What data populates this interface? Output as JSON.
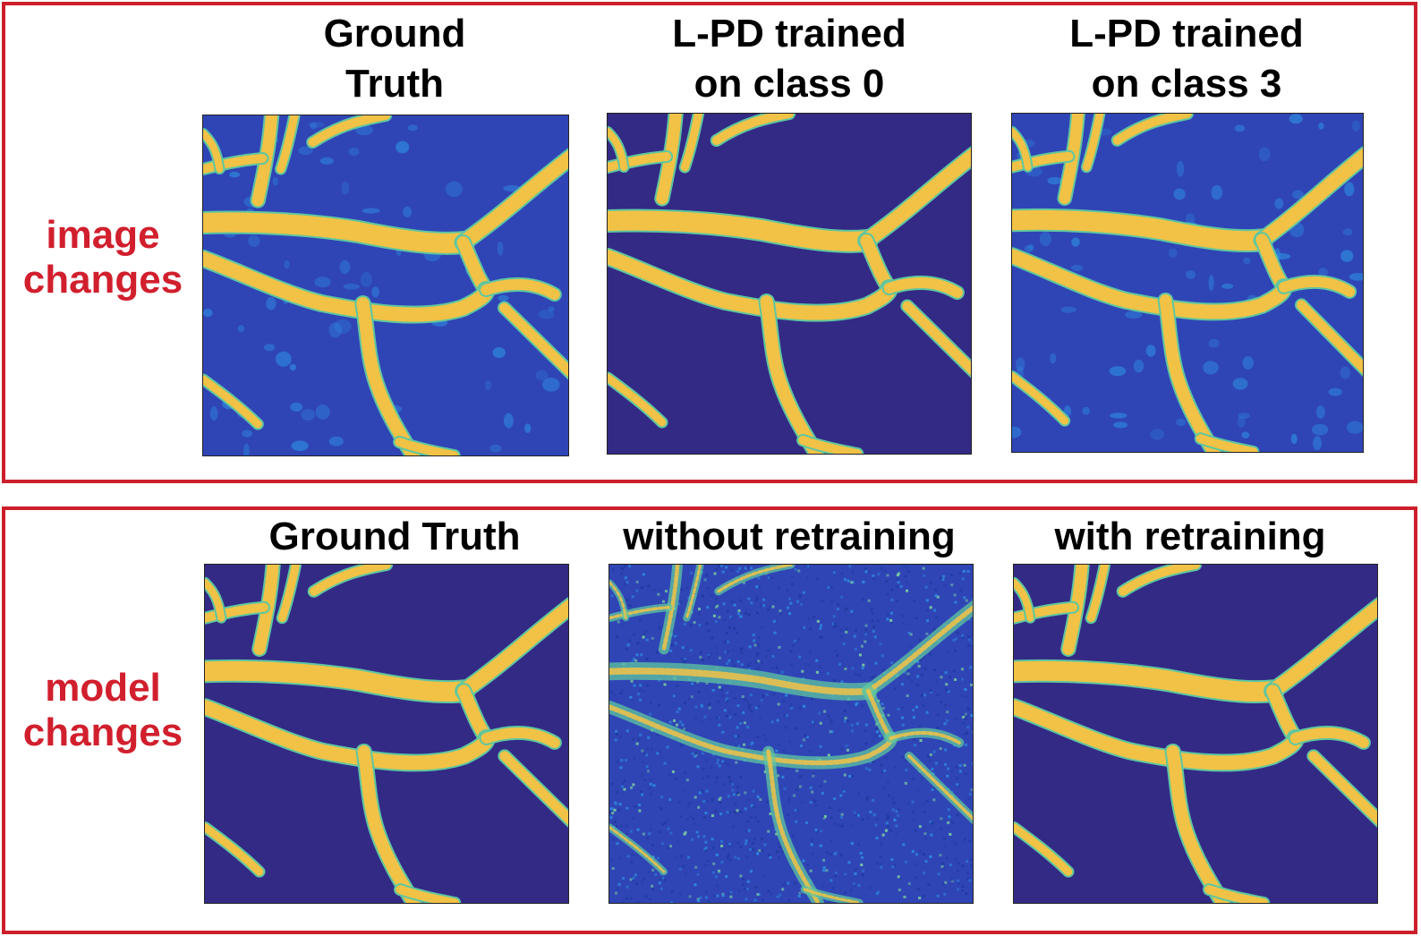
{
  "colors": {
    "frame": "#cc1f2b",
    "row_label": "#d11f2d",
    "background_dark": "#332a86",
    "background_textured": "#2f45b6",
    "vessel": "#f2c246",
    "vessel_edge": "#5fc6a0",
    "speckle_light": "#2e8ee0"
  },
  "top_panel": {
    "row_label": [
      "image",
      "changes"
    ],
    "columns": [
      {
        "title": [
          "Ground",
          "Truth"
        ],
        "background": "textured"
      },
      {
        "title": [
          "L-PD trained",
          "on class 0"
        ],
        "background": "clean"
      },
      {
        "title": [
          "L-PD trained",
          "on class 3"
        ],
        "background": "textured"
      }
    ]
  },
  "bottom_panel": {
    "row_label": [
      "model",
      "changes"
    ],
    "columns": [
      {
        "title": [
          "Ground Truth"
        ],
        "background": "clean"
      },
      {
        "title": [
          "without retraining"
        ],
        "background": "noisy"
      },
      {
        "title": [
          "with retraining"
        ],
        "background": "clean"
      }
    ]
  }
}
